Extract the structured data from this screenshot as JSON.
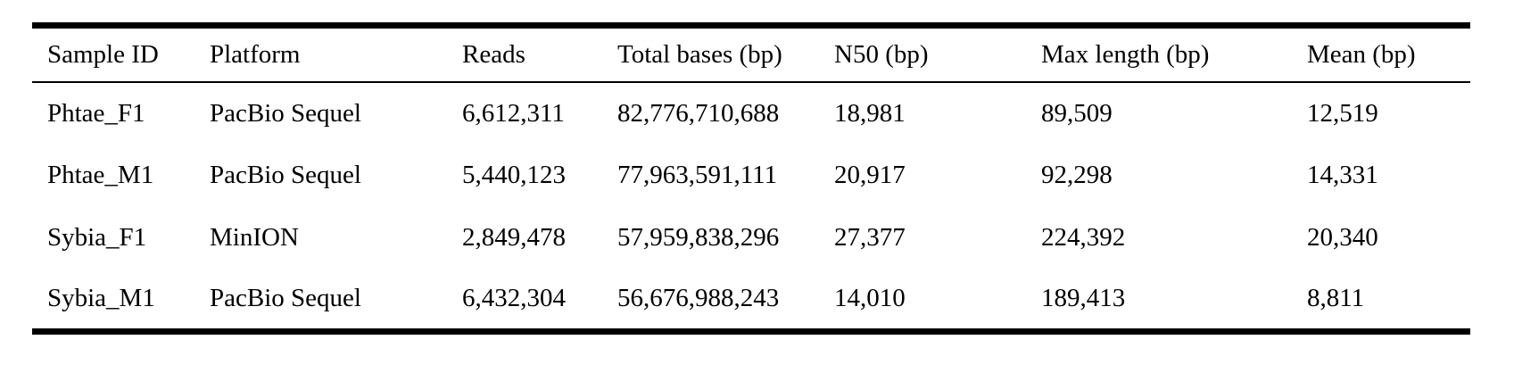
{
  "colors": {
    "background": "#ffffff",
    "text": "#000000",
    "rule": "#000000"
  },
  "table": {
    "columns": [
      "Sample ID",
      "Platform",
      "Reads",
      "Total bases (bp)",
      "N50 (bp)",
      "Max length (bp)",
      "Mean (bp)"
    ],
    "rows": [
      [
        "Phtae_F1",
        "PacBio Sequel",
        "6,612,311",
        "82,776,710,688",
        "18,981",
        "89,509",
        "12,519"
      ],
      [
        "Phtae_M1",
        "PacBio Sequel",
        "5,440,123",
        "77,963,591,111",
        "20,917",
        "92,298",
        "14,331"
      ],
      [
        "Sybia_F1",
        "MinION",
        "2,849,478",
        "57,959,838,296",
        "27,377",
        "224,392",
        "20,340"
      ],
      [
        "Sybia_M1",
        "PacBio Sequel",
        "6,432,304",
        "56,676,988,243",
        "14,010",
        "189,413",
        "8,811"
      ]
    ]
  }
}
